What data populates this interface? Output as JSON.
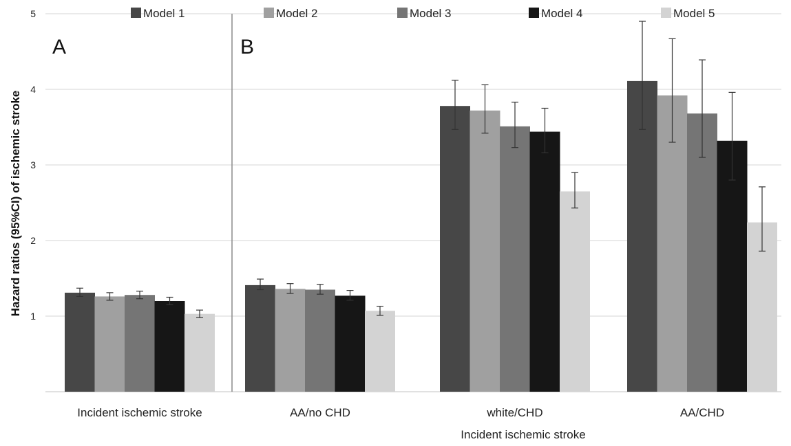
{
  "chart_data": {
    "type": "bar",
    "ylabel": "Hazard ratios (95%CI) of ischemic stroke",
    "xlabel": "Incident ischemic stroke",
    "ylim": [
      0,
      5
    ],
    "yticks": [
      "1",
      "2",
      "3",
      "4",
      "5"
    ],
    "grid": true,
    "legend_position": "top",
    "panels": [
      "A",
      "B"
    ],
    "categories": [
      "Incident ischemic stroke",
      "AA/no CHD",
      "white/CHD",
      "AA/CHD"
    ],
    "series": [
      {
        "name": "Model 1",
        "color": "#474747",
        "values": [
          1.31,
          1.41,
          3.78,
          4.11
        ],
        "lower": [
          1.26,
          1.35,
          3.47,
          3.47
        ],
        "upper": [
          1.37,
          1.49,
          4.12,
          4.9
        ]
      },
      {
        "name": "Model 2",
        "color": "#a0a0a0",
        "values": [
          1.26,
          1.36,
          3.72,
          3.92
        ],
        "lower": [
          1.21,
          1.3,
          3.42,
          3.3
        ],
        "upper": [
          1.31,
          1.43,
          4.06,
          4.67
        ]
      },
      {
        "name": "Model 3",
        "color": "#757575",
        "values": [
          1.28,
          1.35,
          3.51,
          3.68
        ],
        "lower": [
          1.23,
          1.29,
          3.23,
          3.1
        ],
        "upper": [
          1.33,
          1.42,
          3.83,
          4.39
        ]
      },
      {
        "name": "Model 4",
        "color": "#161616",
        "values": [
          1.2,
          1.27,
          3.44,
          3.32
        ],
        "lower": [
          1.15,
          1.21,
          3.16,
          2.8
        ],
        "upper": [
          1.25,
          1.34,
          3.75,
          3.96
        ]
      },
      {
        "name": "Model 5",
        "color": "#d3d3d3",
        "values": [
          1.03,
          1.07,
          2.65,
          2.24
        ],
        "lower": [
          0.98,
          1.01,
          2.43,
          1.86
        ],
        "upper": [
          1.08,
          1.13,
          2.9,
          2.71
        ]
      }
    ]
  }
}
